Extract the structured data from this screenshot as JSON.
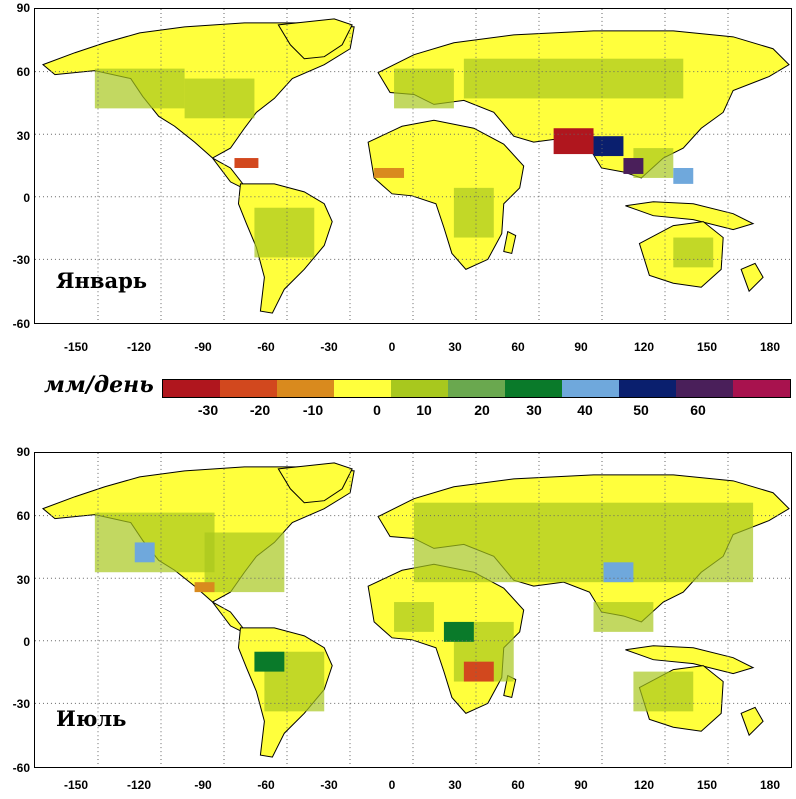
{
  "units_label": "мм/день",
  "legend": {
    "colors": [
      "#b0161e",
      "#d2481e",
      "#d98a1e",
      "#ffff3c",
      "#a8c81e",
      "#6aa84f",
      "#0a7a2a",
      "#6fa8dc",
      "#0a1f6e",
      "#4a1f5a",
      "#a8124e"
    ],
    "ticks": [
      "-30",
      "-20",
      "-10",
      "0",
      "10",
      "20",
      "30",
      "40",
      "50",
      "60"
    ]
  },
  "axes": {
    "lat_labels": [
      "90",
      "60",
      "30",
      "0",
      "-30",
      "-60"
    ],
    "lon_labels": [
      "-150",
      "-120",
      "-90",
      "-60",
      "-30",
      "0",
      "30",
      "60",
      "90",
      "120",
      "150",
      "180"
    ]
  },
  "panels": {
    "top": {
      "label": "Январь"
    },
    "bottom": {
      "label": "Июль"
    }
  },
  "colors": {
    "ocean": "#ffffff",
    "land_base": "#ffff3c",
    "gridline": "#666666"
  }
}
